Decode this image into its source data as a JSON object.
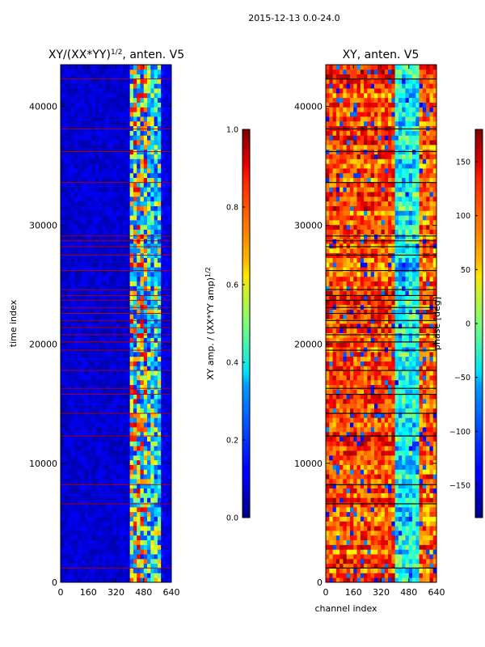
{
  "suptitle": "2015-12-13 0.0-24.0",
  "chart_data": [
    {
      "type": "heatmap",
      "panel": "amplitude",
      "title_pre": "XY/(XX*YY)",
      "title_exp": "1/2",
      "title_post": ", anten. V5",
      "xlabel": "",
      "ylabel": "time index",
      "xlim": [
        0,
        640
      ],
      "ylim": [
        0,
        43500
      ],
      "xticks": [
        0,
        160,
        320,
        480,
        640
      ],
      "yticks": [
        0,
        10000,
        20000,
        30000,
        40000
      ],
      "xtick_labels": [
        "0",
        "160",
        "320",
        "480",
        "640"
      ],
      "ytick_labels": [
        "0",
        "10000",
        "20000",
        "30000",
        "40000"
      ],
      "colormap": "jet",
      "colorbar": {
        "label_pre": "XY amp. / (XX*YY amp)",
        "label_exp": "1/2",
        "range": [
          0.0,
          1.0
        ],
        "ticks": [
          0.0,
          0.2,
          0.4,
          0.6,
          0.8,
          1.0
        ],
        "tick_labels": [
          "0.0",
          "0.2",
          "0.4",
          "0.6",
          "0.8",
          "1.0"
        ]
      },
      "flagged_rows": [
        1200,
        6600,
        8200,
        12300,
        14200,
        15800,
        16300,
        17800,
        19500,
        20200,
        20800,
        21400,
        22000,
        22600,
        23100,
        23700,
        24100,
        24600,
        26200,
        27500,
        28200,
        28700,
        29100,
        33600,
        36200,
        38100,
        42300
      ],
      "features": [
        {
          "channel_range": [
            400,
            500
          ],
          "level": 0.6
        },
        {
          "channel_range": [
            500,
            580
          ],
          "level": 0.4
        },
        {
          "channel_range": [
            0,
            400
          ],
          "level": 0.08
        }
      ]
    },
    {
      "type": "heatmap",
      "panel": "phase",
      "title": "XY, anten. V5",
      "xlabel": "channel index",
      "ylabel": "",
      "xlim": [
        0,
        640
      ],
      "ylim": [
        0,
        43500
      ],
      "xticks": [
        0,
        160,
        320,
        480,
        640
      ],
      "yticks": [
        0,
        10000,
        20000,
        30000,
        40000
      ],
      "xtick_labels": [
        "0",
        "160",
        "320",
        "480",
        "640"
      ],
      "ytick_labels": [
        "0",
        "10000",
        "20000",
        "30000",
        "40000"
      ],
      "colormap": "jet",
      "colorbar": {
        "label": "phase [deg]",
        "range": [
          -180,
          180
        ],
        "ticks": [
          -150,
          -100,
          -50,
          0,
          50,
          100,
          150
        ],
        "tick_labels": [
          "−150",
          "−100",
          "−50",
          "0",
          "50",
          "100",
          "150"
        ]
      },
      "flagged_rows": [
        1200,
        6600,
        8200,
        12300,
        14200,
        15800,
        16300,
        17800,
        19500,
        20200,
        20800,
        21400,
        22000,
        22600,
        23100,
        23700,
        24100,
        24600,
        26200,
        27500,
        28200,
        28700,
        29100,
        33600,
        36200,
        38100,
        42300
      ],
      "features": [
        {
          "channel_range": [
            0,
            400
          ],
          "level": 110
        },
        {
          "channel_range": [
            400,
            540
          ],
          "level": -40
        },
        {
          "channel_range": [
            540,
            640
          ],
          "level": 100
        }
      ]
    }
  ]
}
